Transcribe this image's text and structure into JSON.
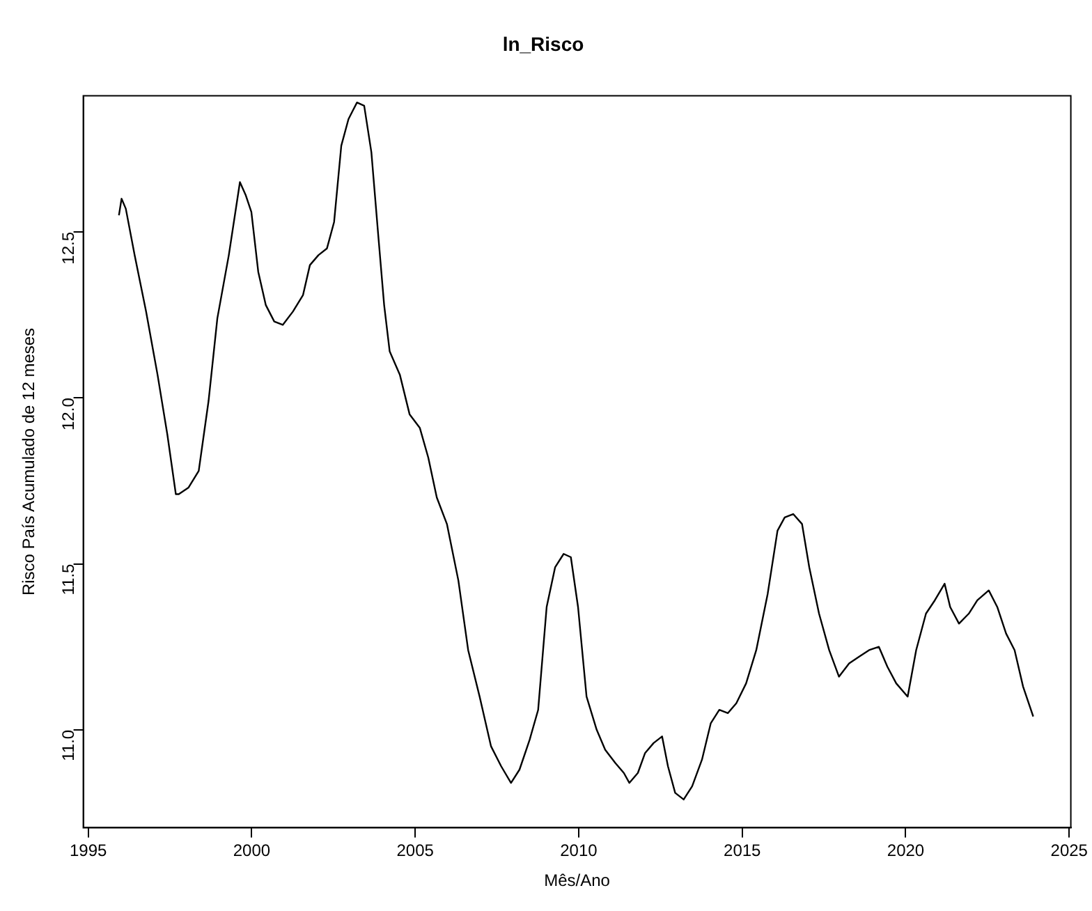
{
  "chart_data": {
    "type": "line",
    "title": "ln_Risco",
    "xlabel": "Mês/Ano",
    "ylabel": "Risco País Acumulado de 12 meses",
    "x": [
      1995.94,
      1996.02,
      1996.15,
      1996.42,
      1996.77,
      1997.12,
      1997.42,
      1997.68,
      1997.77,
      1998.07,
      1998.38,
      1998.68,
      1998.95,
      1999.3,
      1999.64,
      1999.82,
      1999.99,
      2000.2,
      2000.43,
      2000.69,
      2000.95,
      2001.26,
      2001.57,
      2001.78,
      2002.04,
      2002.3,
      2002.52,
      2002.74,
      2002.96,
      2003.22,
      2003.44,
      2003.66,
      2003.87,
      2004.05,
      2004.22,
      2004.53,
      2004.83,
      2005.14,
      2005.4,
      2005.66,
      2005.97,
      2006.32,
      2006.62,
      2006.97,
      2007.32,
      2007.63,
      2007.93,
      2008.19,
      2008.5,
      2008.76,
      2009.02,
      2009.28,
      2009.54,
      2009.76,
      2009.98,
      2010.24,
      2010.55,
      2010.81,
      2011.12,
      2011.38,
      2011.55,
      2011.81,
      2012.03,
      2012.29,
      2012.55,
      2012.73,
      2012.95,
      2013.21,
      2013.47,
      2013.77,
      2014.04,
      2014.3,
      2014.56,
      2014.82,
      2015.12,
      2015.43,
      2015.78,
      2016.08,
      2016.3,
      2016.56,
      2016.83,
      2017.05,
      2017.35,
      2017.66,
      2017.96,
      2018.27,
      2018.57,
      2018.88,
      2019.18,
      2019.44,
      2019.71,
      2020.06,
      2020.32,
      2020.62,
      2020.89,
      2021.19,
      2021.36,
      2021.63,
      2021.93,
      2022.19,
      2022.54,
      2022.8,
      2023.07,
      2023.33,
      2023.59,
      2023.9
    ],
    "series": [
      {
        "color": "#000000",
        "values": [
          12.55,
          12.6,
          12.57,
          12.43,
          12.26,
          12.07,
          11.89,
          11.71,
          11.71,
          11.73,
          11.78,
          11.99,
          12.24,
          12.43,
          12.65,
          12.61,
          12.56,
          12.38,
          12.28,
          12.23,
          12.22,
          12.26,
          12.31,
          12.4,
          12.43,
          12.45,
          12.53,
          12.76,
          12.84,
          12.89,
          12.88,
          12.74,
          12.49,
          12.28,
          12.14,
          12.07,
          11.95,
          11.91,
          11.82,
          11.7,
          11.62,
          11.45,
          11.24,
          11.1,
          10.95,
          10.89,
          10.84,
          10.88,
          10.97,
          11.06,
          11.37,
          11.49,
          11.53,
          11.52,
          11.37,
          11.1,
          11.0,
          10.94,
          10.9,
          10.87,
          10.84,
          10.87,
          10.93,
          10.96,
          10.98,
          10.89,
          10.81,
          10.79,
          10.83,
          10.91,
          11.02,
          11.06,
          11.05,
          11.08,
          11.14,
          11.24,
          11.41,
          11.6,
          11.64,
          11.65,
          11.62,
          11.49,
          11.35,
          11.24,
          11.16,
          11.2,
          11.22,
          11.24,
          11.25,
          11.19,
          11.14,
          11.1,
          11.24,
          11.35,
          11.39,
          11.44,
          11.37,
          11.32,
          11.35,
          11.39,
          11.42,
          11.37,
          11.29,
          11.24,
          11.13,
          11.04
        ]
      }
    ],
    "xlim": [
      1994.85,
      2025.05
    ],
    "xticks": [
      1995,
      2000,
      2005,
      2010,
      2015,
      2020,
      2025
    ],
    "ylim": [
      10.705,
      12.91
    ],
    "yticks": [
      {
        "value": 11,
        "label": "11.0"
      },
      {
        "value": 11.5,
        "label": "11.5"
      },
      {
        "value": 12,
        "label": "12.0"
      },
      {
        "value": 12.5,
        "label": "12.5"
      }
    ],
    "grid": false,
    "legend": false,
    "marker": "none",
    "line_style": "solid"
  }
}
